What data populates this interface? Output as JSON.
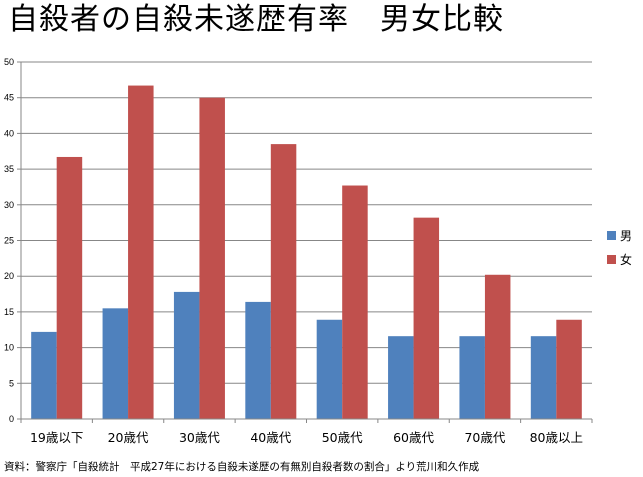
{
  "title": "自殺者の自殺未遂歴有率　男女比較",
  "source": "資料：警察庁「自殺統計　平成27年における自殺未遂歴の有無別自殺者数の割合」より荒川和久作成",
  "chart_data": {
    "type": "bar",
    "categories": [
      "19歳以下",
      "20歳代",
      "30歳代",
      "40歳代",
      "50歳代",
      "60歳代",
      "70歳代",
      "80歳以上"
    ],
    "series": [
      {
        "name": "男",
        "color": "#4f81bd",
        "values": [
          12.2,
          15.5,
          17.8,
          16.4,
          13.9,
          11.6,
          11.6,
          11.6
        ]
      },
      {
        "name": "女",
        "color": "#c0504d",
        "values": [
          36.7,
          46.7,
          45.0,
          38.5,
          32.7,
          28.2,
          20.2,
          13.9
        ]
      }
    ],
    "ylim": [
      0,
      50
    ],
    "yticks": [
      0,
      5,
      10,
      15,
      20,
      25,
      30,
      35,
      40,
      45,
      50
    ],
    "grid": true,
    "legend": "right"
  }
}
